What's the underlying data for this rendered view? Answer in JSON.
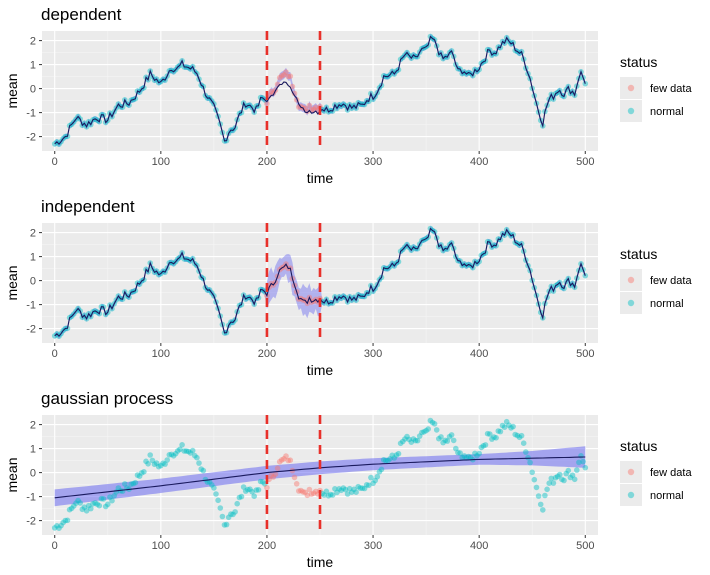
{
  "colors": {
    "panel_bg": "#EBEBEB",
    "grid_major": "#FFFFFF",
    "few_data": "#F8766D",
    "normal": "#00BFC4",
    "line_dark": "#1A1A5E",
    "ribbon": "#6A6AF0",
    "vline": "#E8302A",
    "axis_text": "#4D4D4D"
  },
  "chart_data": [
    {
      "type": "scatter",
      "title": "dependent",
      "xlabel": "time",
      "ylabel": "mean",
      "xlim": [
        -12,
        512
      ],
      "ylim": [
        -2.6,
        2.4
      ],
      "xticks": [
        0,
        100,
        200,
        300,
        400,
        500
      ],
      "yticks": [
        -2,
        -1,
        0,
        1,
        2
      ],
      "grid": true,
      "vlines": [
        200,
        250
      ],
      "fit": "smoother",
      "legend": {
        "title": "status",
        "position": "right",
        "entries": [
          "few data",
          "normal"
        ]
      }
    },
    {
      "type": "scatter",
      "title": "independent",
      "xlabel": "time",
      "ylabel": "mean",
      "xlim": [
        -12,
        512
      ],
      "ylim": [
        -2.6,
        2.4
      ],
      "xticks": [
        0,
        100,
        200,
        300,
        400,
        500
      ],
      "yticks": [
        -2,
        -1,
        0,
        1,
        2
      ],
      "grid": true,
      "vlines": [
        200,
        250
      ],
      "fit": "independent",
      "legend": {
        "title": "status",
        "position": "right",
        "entries": [
          "few data",
          "normal"
        ]
      }
    },
    {
      "type": "scatter",
      "title": "gaussian process",
      "xlabel": "time",
      "ylabel": "mean",
      "xlim": [
        -12,
        512
      ],
      "ylim": [
        -2.6,
        2.4
      ],
      "xticks": [
        0,
        100,
        200,
        300,
        400,
        500
      ],
      "yticks": [
        -2,
        -1,
        0,
        1,
        2
      ],
      "grid": true,
      "vlines": [
        200,
        250
      ],
      "fit": "gp",
      "legend": {
        "title": "status",
        "position": "right",
        "entries": [
          "few data",
          "normal"
        ]
      }
    }
  ],
  "series": {
    "anchors": [
      [
        0,
        -2.3
      ],
      [
        10,
        -2.0
      ],
      [
        15,
        -1.6
      ],
      [
        20,
        -1.2
      ],
      [
        30,
        -1.5
      ],
      [
        40,
        -1.2
      ],
      [
        50,
        -1.3
      ],
      [
        60,
        -0.7
      ],
      [
        70,
        -0.6
      ],
      [
        80,
        -0.1
      ],
      [
        90,
        0.6
      ],
      [
        95,
        0.4
      ],
      [
        100,
        0.2
      ],
      [
        110,
        0.9
      ],
      [
        115,
        0.8
      ],
      [
        120,
        1.0
      ],
      [
        130,
        0.8
      ],
      [
        135,
        0.6
      ],
      [
        140,
        0.0
      ],
      [
        150,
        -0.8
      ],
      [
        155,
        -1.4
      ],
      [
        160,
        -2.2
      ],
      [
        165,
        -1.7
      ],
      [
        170,
        -1.6
      ],
      [
        175,
        -1.0
      ],
      [
        180,
        -0.6
      ],
      [
        190,
        -0.9
      ],
      [
        195,
        -0.4
      ],
      [
        200,
        -0.5
      ],
      [
        205,
        -0.2
      ],
      [
        210,
        0.3
      ],
      [
        215,
        0.5
      ],
      [
        220,
        0.6
      ],
      [
        225,
        0.1
      ],
      [
        230,
        -0.6
      ],
      [
        235,
        -1.0
      ],
      [
        240,
        -0.7
      ],
      [
        245,
        -0.8
      ],
      [
        250,
        -0.7
      ],
      [
        255,
        -0.9
      ],
      [
        260,
        -0.8
      ],
      [
        270,
        -0.6
      ],
      [
        280,
        -0.8
      ],
      [
        290,
        -0.7
      ],
      [
        295,
        -0.4
      ],
      [
        300,
        -0.3
      ],
      [
        305,
        0.0
      ],
      [
        310,
        0.5
      ],
      [
        320,
        0.6
      ],
      [
        330,
        1.4
      ],
      [
        340,
        1.2
      ],
      [
        345,
        1.6
      ],
      [
        350,
        1.6
      ],
      [
        355,
        2.1
      ],
      [
        360,
        1.8
      ],
      [
        365,
        1.2
      ],
      [
        375,
        1.5
      ],
      [
        380,
        0.7
      ],
      [
        385,
        0.8
      ],
      [
        390,
        0.5
      ],
      [
        400,
        0.9
      ],
      [
        410,
        1.6
      ],
      [
        415,
        1.5
      ],
      [
        420,
        1.8
      ],
      [
        425,
        2.0
      ],
      [
        430,
        1.9
      ],
      [
        440,
        1.4
      ],
      [
        445,
        0.9
      ],
      [
        450,
        0.1
      ],
      [
        455,
        -0.8
      ],
      [
        460,
        -1.4
      ],
      [
        465,
        -0.5
      ],
      [
        470,
        -0.3
      ],
      [
        475,
        0.0
      ],
      [
        480,
        -0.2
      ],
      [
        485,
        0.0
      ],
      [
        490,
        -0.2
      ],
      [
        495,
        0.7
      ],
      [
        500,
        0.3
      ]
    ],
    "gp_mean": [
      [
        0,
        -1.05
      ],
      [
        100,
        -0.55
      ],
      [
        200,
        0.0
      ],
      [
        250,
        0.2
      ],
      [
        300,
        0.35
      ],
      [
        400,
        0.55
      ],
      [
        500,
        0.65
      ]
    ],
    "gp_halfwidth": [
      [
        0,
        0.35
      ],
      [
        100,
        0.3
      ],
      [
        200,
        0.28
      ],
      [
        300,
        0.25
      ],
      [
        400,
        0.22
      ],
      [
        450,
        0.3
      ],
      [
        500,
        0.45
      ]
    ]
  }
}
